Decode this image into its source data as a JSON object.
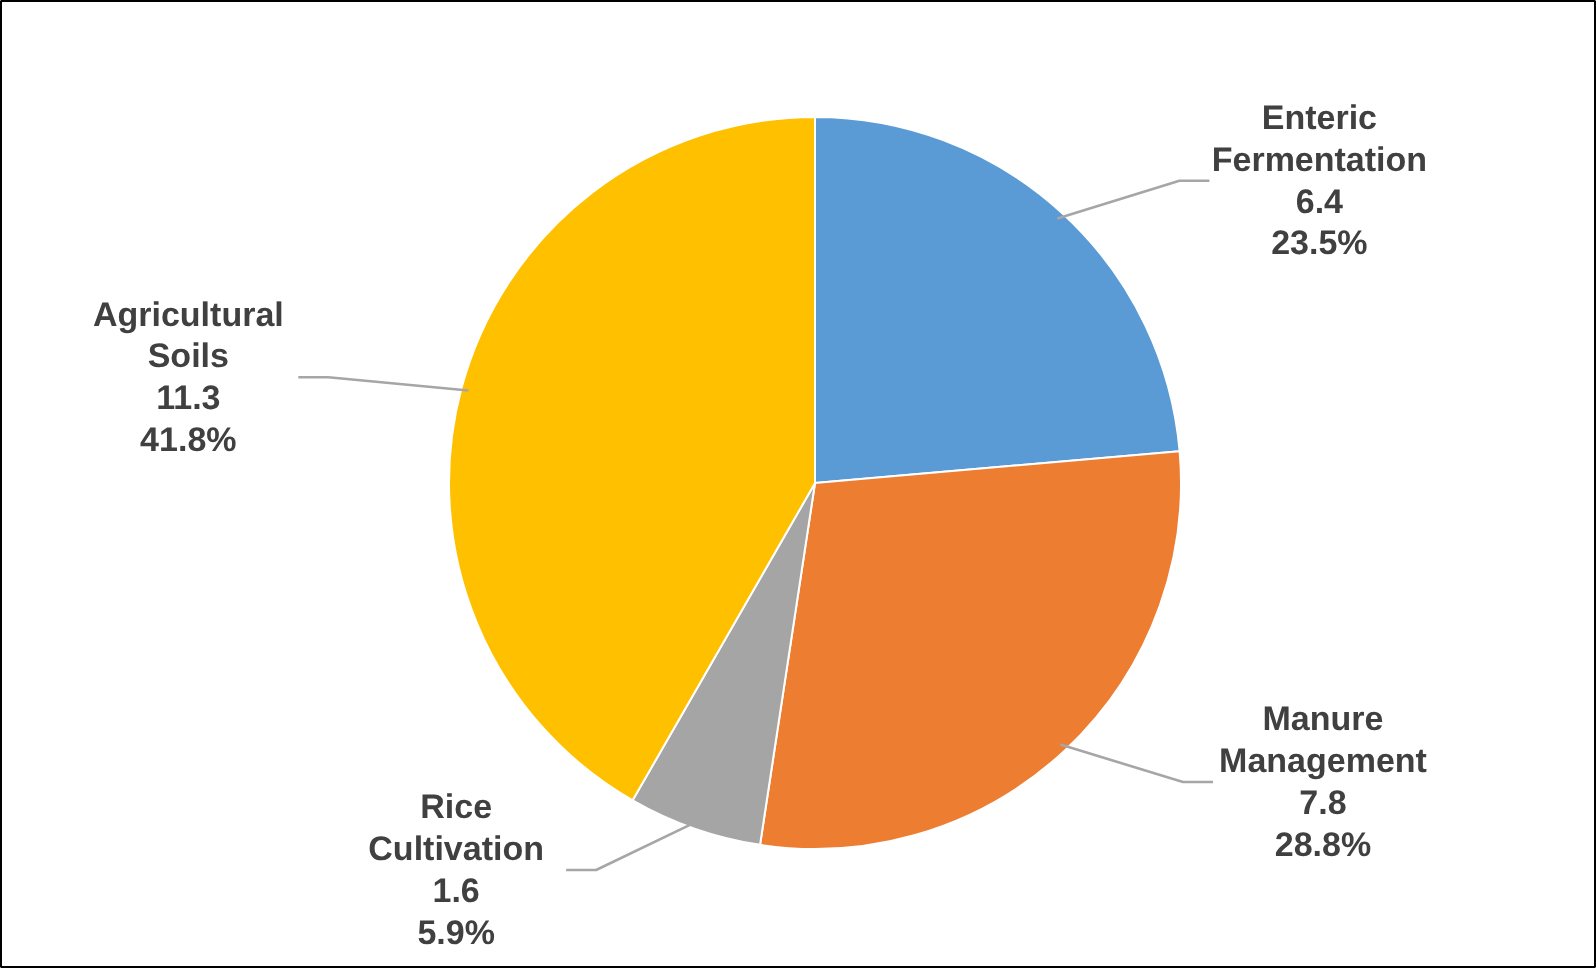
{
  "chart_data": {
    "type": "pie",
    "categories": [
      "Enteric Fermentation",
      "Manure Management",
      "Rice Cultivation",
      "Agricultural Soils"
    ],
    "values": [
      6.4,
      7.8,
      1.6,
      11.3
    ],
    "value_labels": [
      "6.4\n23.5%",
      "7.8\n28.8%",
      "1.6\n5.9%",
      "11.3\n41.8%"
    ],
    "colors": [
      "#5b9bd5",
      "#ed7d31",
      "#a5a5a5",
      "#ffc000"
    ]
  }
}
